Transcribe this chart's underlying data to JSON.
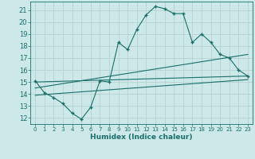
{
  "xlabel": "Humidex (Indice chaleur)",
  "background_color": "#cce8e8",
  "grid_color": "#b8d4d4",
  "line_color": "#1a6e6a",
  "xlim": [
    -0.5,
    23.5
  ],
  "ylim": [
    11.5,
    21.7
  ],
  "xticks": [
    0,
    1,
    2,
    3,
    4,
    5,
    6,
    7,
    8,
    9,
    10,
    11,
    12,
    13,
    14,
    15,
    16,
    17,
    18,
    19,
    20,
    21,
    22,
    23
  ],
  "yticks": [
    12,
    13,
    14,
    15,
    16,
    17,
    18,
    19,
    20,
    21
  ],
  "series1_x": [
    0,
    1,
    2,
    3,
    4,
    5,
    6,
    7,
    8,
    9,
    10,
    11,
    12,
    13,
    14,
    15,
    16,
    17,
    18,
    19,
    20,
    21,
    22,
    23
  ],
  "series1_y": [
    15.1,
    14.1,
    13.7,
    13.2,
    12.4,
    11.9,
    12.9,
    15.1,
    15.0,
    18.3,
    17.7,
    19.4,
    20.6,
    21.3,
    21.1,
    20.7,
    20.7,
    18.3,
    19.0,
    18.3,
    17.3,
    17.0,
    16.0,
    15.5
  ],
  "line2_x": [
    0,
    23
  ],
  "line2_y": [
    15.0,
    15.5
  ],
  "line3_x": [
    0,
    23
  ],
  "line3_y": [
    14.5,
    17.3
  ],
  "line4_x": [
    0,
    23
  ],
  "line4_y": [
    13.9,
    15.2
  ]
}
